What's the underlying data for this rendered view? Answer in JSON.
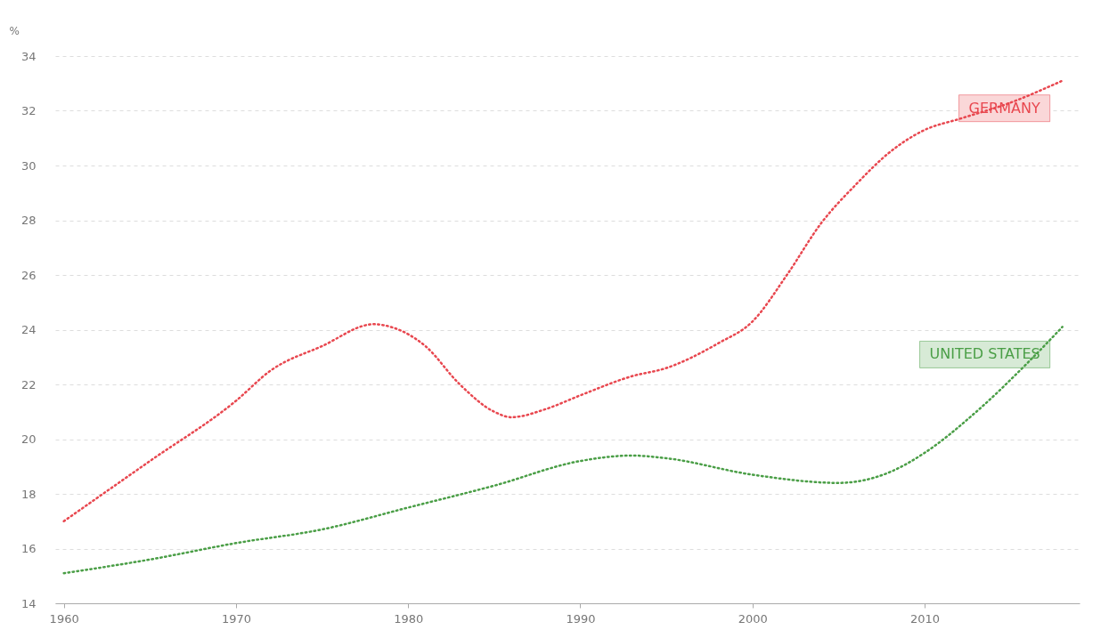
{
  "chart_data": {
    "type": "line",
    "ylabel": "%",
    "x": [
      1960,
      1965,
      1970,
      1972,
      1975,
      1978,
      1979,
      1981,
      1983,
      1985,
      1986,
      1988,
      1990,
      1993,
      1995,
      1998,
      2000,
      2002,
      2004,
      2006,
      2008,
      2010,
      2012,
      2015,
      2018
    ],
    "series": [
      {
        "name": "GERMANY",
        "color": "#e8474f",
        "values": [
          17.0,
          19.2,
          21.4,
          22.5,
          23.4,
          24.2,
          24.1,
          23.4,
          22.0,
          21.0,
          20.8,
          21.1,
          21.6,
          22.3,
          22.6,
          23.5,
          24.3,
          26.0,
          27.9,
          29.3,
          30.5,
          31.3,
          31.7,
          32.3,
          33.1
        ]
      },
      {
        "name": "UNITED STATES",
        "color": "#4a9e46",
        "x": [
          1960,
          1965,
          1970,
          1975,
          1980,
          1985,
          1990,
          1993,
          1995,
          2000,
          2005,
          2008,
          2010,
          2013,
          2016,
          2018
        ],
        "values": [
          15.1,
          15.6,
          16.2,
          16.7,
          17.5,
          18.3,
          19.2,
          19.4,
          19.3,
          18.7,
          18.4,
          18.8,
          19.5,
          21.0,
          22.8,
          24.1
        ]
      }
    ],
    "xlim": [
      1959.5,
      2019
    ],
    "xticks": [
      1960,
      1970,
      1980,
      1990,
      2000,
      2010
    ],
    "ylim": [
      14,
      34
    ],
    "yticks": [
      14,
      16,
      18,
      20,
      22,
      24,
      26,
      28,
      30,
      32,
      34
    ],
    "grid": "y",
    "line_style": "dotted",
    "marker": "none"
  }
}
